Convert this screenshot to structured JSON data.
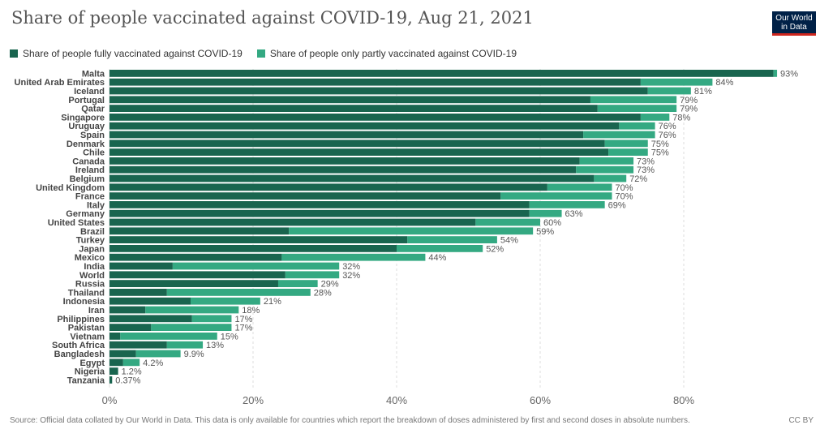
{
  "title": "Share of people vaccinated against COVID-19, Aug 21, 2021",
  "logo": {
    "line1": "Our World",
    "line2": "in Data"
  },
  "footer": {
    "source": "Source: Official data collated by Our World in Data. This data is only available for countries which report the breakdown of doses administered by first and second doses in absolute numbers.",
    "license": "CC BY"
  },
  "colors": {
    "full": "#19654f",
    "partial": "#34a982",
    "grid": "#dddddd",
    "text": "#333333"
  },
  "chart_data": {
    "type": "bar",
    "orientation": "horizontal",
    "stacked": true,
    "title": "Share of people vaccinated against COVID-19, Aug 21, 2021",
    "xlim": [
      0,
      93
    ],
    "x_ticks": [
      "0%",
      "20%",
      "40%",
      "60%",
      "80%"
    ],
    "x_tick_values": [
      0,
      20,
      40,
      60,
      80
    ],
    "legend_position": "top-left",
    "series": [
      {
        "name": "Share of people fully vaccinated against COVID-19",
        "key": "full"
      },
      {
        "name": "Share of people only partly vaccinated against COVID-19",
        "key": "partial"
      }
    ],
    "categories": [
      "Malta",
      "United Arab Emirates",
      "Iceland",
      "Portugal",
      "Qatar",
      "Singapore",
      "Uruguay",
      "Spain",
      "Denmark",
      "Chile",
      "Canada",
      "Ireland",
      "Belgium",
      "United Kingdom",
      "France",
      "Italy",
      "Germany",
      "United States",
      "Brazil",
      "Turkey",
      "Japan",
      "Mexico",
      "India",
      "World",
      "Russia",
      "Thailand",
      "Indonesia",
      "Iran",
      "Philippines",
      "Pakistan",
      "Vietnam",
      "South Africa",
      "Bangladesh",
      "Egypt",
      "Nigeria",
      "Tanzania"
    ],
    "full": [
      92.5,
      74.0,
      75.0,
      67.0,
      68.0,
      74.0,
      71.0,
      66.0,
      69.0,
      69.5,
      65.5,
      65.0,
      67.5,
      61.0,
      54.5,
      58.5,
      58.5,
      51.0,
      25.0,
      41.5,
      40.0,
      24.0,
      8.8,
      24.5,
      23.5,
      8.0,
      11.3,
      5.0,
      11.5,
      5.8,
      1.5,
      8.0,
      3.7,
      1.9,
      1.2,
      0.37
    ],
    "partial": [
      0.5,
      10.0,
      6.0,
      12.0,
      11.0,
      4.0,
      5.0,
      10.0,
      6.0,
      5.5,
      7.5,
      8.0,
      4.5,
      9.0,
      15.5,
      10.5,
      4.5,
      9.0,
      34.0,
      12.5,
      12.0,
      20.0,
      23.2,
      7.5,
      5.5,
      20.0,
      9.7,
      13.0,
      5.5,
      11.2,
      13.5,
      5.0,
      6.2,
      2.3,
      0.0,
      0.0
    ],
    "labels": [
      "93%",
      "84%",
      "81%",
      "79%",
      "79%",
      "78%",
      "76%",
      "76%",
      "75%",
      "75%",
      "73%",
      "73%",
      "72%",
      "70%",
      "70%",
      "69%",
      "63%",
      "60%",
      "59%",
      "54%",
      "52%",
      "44%",
      "32%",
      "32%",
      "29%",
      "28%",
      "21%",
      "18%",
      "17%",
      "17%",
      "15%",
      "13%",
      "9.9%",
      "4.2%",
      "1.2%",
      "0.37%"
    ]
  }
}
